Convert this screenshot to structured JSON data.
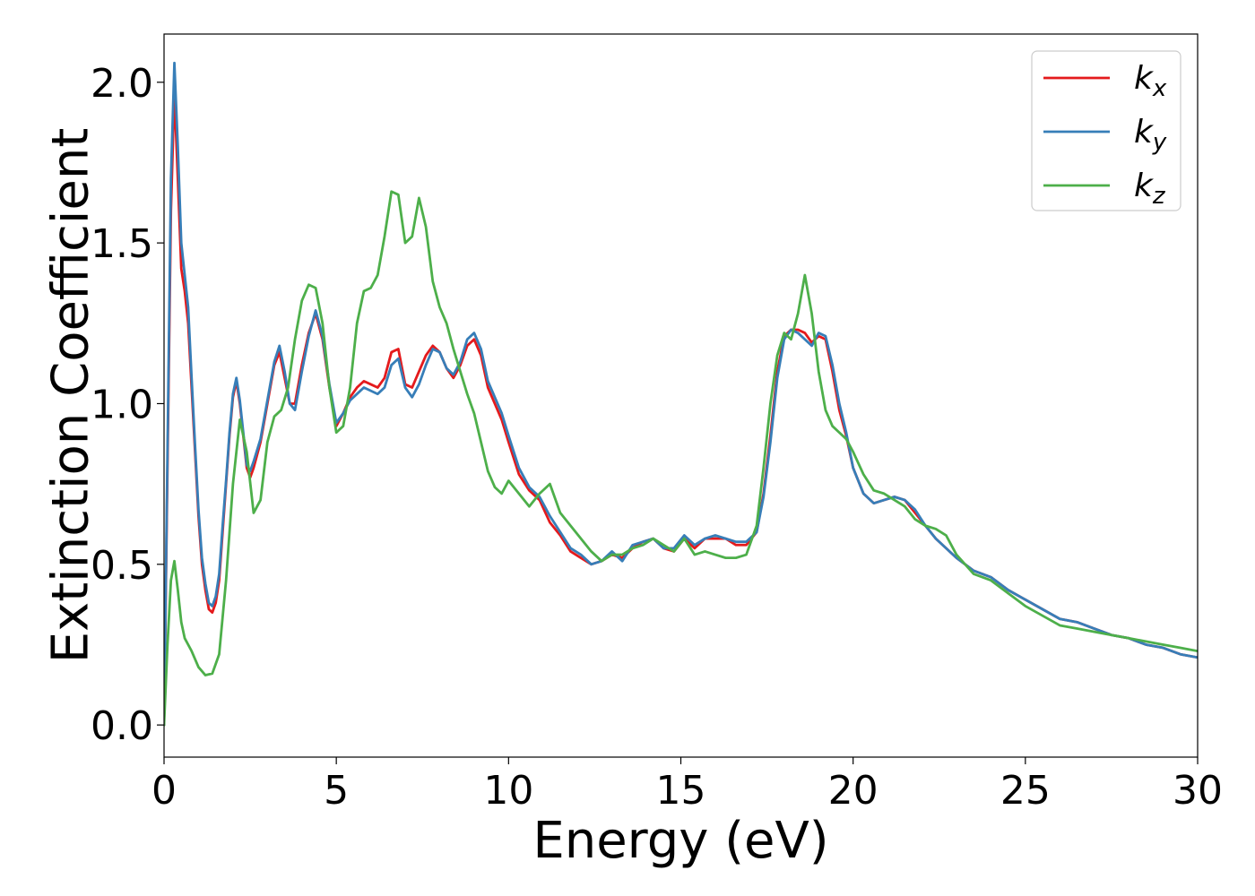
{
  "chart_data": {
    "type": "line",
    "title": "",
    "xlabel": "Energy (eV)",
    "ylabel": "Extinction Coefficient",
    "xlim": [
      0,
      30
    ],
    "ylim": [
      -0.1,
      2.15
    ],
    "xticks": [
      0,
      5,
      10,
      15,
      20,
      25,
      30
    ],
    "yticks": [
      0.0,
      0.5,
      1.0,
      1.5,
      2.0
    ],
    "xtick_labels": [
      "0",
      "5",
      "10",
      "15",
      "20",
      "25",
      "30"
    ],
    "ytick_labels": [
      "0.0",
      "0.5",
      "1.0",
      "1.5",
      "2.0"
    ],
    "grid": false,
    "legend_position": "top-right",
    "series": [
      {
        "name": "k",
        "subscript": "x",
        "color": "#e41a1c",
        "x": [
          0,
          0.1,
          0.2,
          0.3,
          0.4,
          0.5,
          0.6,
          0.7,
          0.8,
          0.9,
          1.0,
          1.1,
          1.2,
          1.3,
          1.4,
          1.5,
          1.6,
          1.7,
          1.8,
          1.9,
          2.0,
          2.1,
          2.2,
          2.3,
          2.4,
          2.5,
          2.6,
          2.8,
          3.0,
          3.2,
          3.35,
          3.5,
          3.65,
          3.8,
          4.0,
          4.2,
          4.4,
          4.6,
          4.8,
          5.0,
          5.2,
          5.4,
          5.6,
          5.8,
          6.0,
          6.2,
          6.4,
          6.6,
          6.8,
          7.0,
          7.2,
          7.4,
          7.6,
          7.8,
          8.0,
          8.2,
          8.4,
          8.6,
          8.8,
          9.0,
          9.2,
          9.4,
          9.6,
          9.8,
          10.0,
          10.3,
          10.6,
          10.9,
          11.2,
          11.5,
          11.8,
          12.1,
          12.4,
          12.7,
          13.0,
          13.3,
          13.6,
          13.9,
          14.2,
          14.5,
          14.8,
          15.1,
          15.4,
          15.7,
          16.0,
          16.3,
          16.6,
          16.9,
          17.2,
          17.4,
          17.6,
          17.8,
          18.0,
          18.2,
          18.4,
          18.6,
          18.8,
          19.0,
          19.2,
          19.4,
          19.6,
          19.8,
          20.0,
          20.3,
          20.6,
          20.9,
          21.2,
          21.5,
          21.8,
          22.1,
          22.4,
          22.7,
          23.0,
          23.5,
          24.0,
          24.5,
          25.0,
          25.5,
          26.0,
          26.5,
          27.0,
          27.5,
          28.0,
          28.5,
          29.0,
          29.5,
          30.0
        ],
        "y": [
          0.0,
          0.8,
          1.6,
          1.97,
          1.7,
          1.42,
          1.35,
          1.25,
          1.05,
          0.85,
          0.65,
          0.5,
          0.42,
          0.36,
          0.35,
          0.38,
          0.45,
          0.6,
          0.75,
          0.9,
          1.02,
          1.07,
          1.0,
          0.9,
          0.8,
          0.77,
          0.8,
          0.88,
          1.0,
          1.12,
          1.16,
          1.08,
          1.0,
          1.0,
          1.12,
          1.22,
          1.28,
          1.2,
          1.05,
          0.93,
          0.97,
          1.02,
          1.05,
          1.07,
          1.06,
          1.05,
          1.08,
          1.16,
          1.17,
          1.06,
          1.05,
          1.1,
          1.15,
          1.18,
          1.16,
          1.11,
          1.08,
          1.12,
          1.18,
          1.2,
          1.15,
          1.05,
          1.0,
          0.95,
          0.88,
          0.78,
          0.73,
          0.7,
          0.63,
          0.59,
          0.54,
          0.52,
          0.5,
          0.51,
          0.53,
          0.52,
          0.55,
          0.57,
          0.58,
          0.55,
          0.54,
          0.58,
          0.55,
          0.58,
          0.58,
          0.58,
          0.56,
          0.56,
          0.6,
          0.72,
          0.9,
          1.1,
          1.21,
          1.23,
          1.23,
          1.22,
          1.19,
          1.21,
          1.2,
          1.1,
          0.98,
          0.9,
          0.8,
          0.72,
          0.69,
          0.7,
          0.71,
          0.7,
          0.66,
          0.62,
          0.58,
          0.55,
          0.52,
          0.48,
          0.46,
          0.42,
          0.39,
          0.36,
          0.33,
          0.32,
          0.3,
          0.28,
          0.27,
          0.25,
          0.24,
          0.22,
          0.21
        ]
      },
      {
        "name": "k",
        "subscript": "y",
        "color": "#377eb8",
        "x": [
          0,
          0.1,
          0.2,
          0.3,
          0.4,
          0.5,
          0.6,
          0.7,
          0.8,
          0.9,
          1.0,
          1.1,
          1.2,
          1.3,
          1.4,
          1.5,
          1.6,
          1.7,
          1.8,
          1.9,
          2.0,
          2.1,
          2.2,
          2.3,
          2.4,
          2.5,
          2.6,
          2.8,
          3.0,
          3.2,
          3.35,
          3.5,
          3.65,
          3.8,
          4.0,
          4.2,
          4.4,
          4.6,
          4.8,
          5.0,
          5.2,
          5.4,
          5.6,
          5.8,
          6.0,
          6.2,
          6.4,
          6.6,
          6.8,
          7.0,
          7.2,
          7.4,
          7.6,
          7.8,
          8.0,
          8.2,
          8.4,
          8.6,
          8.8,
          9.0,
          9.2,
          9.4,
          9.6,
          9.8,
          10.0,
          10.3,
          10.6,
          10.9,
          11.2,
          11.5,
          11.8,
          12.1,
          12.4,
          12.7,
          13.0,
          13.3,
          13.6,
          13.9,
          14.2,
          14.5,
          14.8,
          15.1,
          15.4,
          15.7,
          16.0,
          16.3,
          16.6,
          16.9,
          17.2,
          17.4,
          17.6,
          17.8,
          18.0,
          18.2,
          18.4,
          18.6,
          18.8,
          19.0,
          19.2,
          19.4,
          19.6,
          19.8,
          20.0,
          20.3,
          20.6,
          20.9,
          21.2,
          21.5,
          21.8,
          22.1,
          22.4,
          22.7,
          23.0,
          23.5,
          24.0,
          24.5,
          25.0,
          25.5,
          26.0,
          26.5,
          27.0,
          27.5,
          28.0,
          28.5,
          29.0,
          29.5,
          30.0
        ],
        "y": [
          0.0,
          0.85,
          1.7,
          2.06,
          1.8,
          1.5,
          1.4,
          1.3,
          1.08,
          0.87,
          0.67,
          0.52,
          0.44,
          0.38,
          0.37,
          0.4,
          0.47,
          0.62,
          0.76,
          0.91,
          1.03,
          1.08,
          1.01,
          0.91,
          0.81,
          0.79,
          0.82,
          0.89,
          1.01,
          1.13,
          1.18,
          1.1,
          1.0,
          0.98,
          1.1,
          1.21,
          1.29,
          1.21,
          1.06,
          0.94,
          0.97,
          1.01,
          1.03,
          1.05,
          1.04,
          1.03,
          1.05,
          1.12,
          1.14,
          1.05,
          1.02,
          1.06,
          1.12,
          1.17,
          1.16,
          1.11,
          1.09,
          1.13,
          1.2,
          1.22,
          1.17,
          1.07,
          1.02,
          0.97,
          0.9,
          0.8,
          0.74,
          0.71,
          0.65,
          0.6,
          0.55,
          0.53,
          0.5,
          0.51,
          0.54,
          0.51,
          0.56,
          0.57,
          0.58,
          0.55,
          0.55,
          0.59,
          0.56,
          0.58,
          0.59,
          0.58,
          0.57,
          0.57,
          0.6,
          0.71,
          0.88,
          1.08,
          1.2,
          1.23,
          1.22,
          1.2,
          1.18,
          1.22,
          1.21,
          1.12,
          1.0,
          0.91,
          0.8,
          0.72,
          0.69,
          0.7,
          0.71,
          0.7,
          0.67,
          0.62,
          0.58,
          0.55,
          0.52,
          0.48,
          0.46,
          0.42,
          0.39,
          0.36,
          0.33,
          0.32,
          0.3,
          0.28,
          0.27,
          0.25,
          0.24,
          0.22,
          0.21
        ]
      },
      {
        "name": "k",
        "subscript": "z",
        "color": "#4daf4a",
        "x": [
          0,
          0.1,
          0.2,
          0.3,
          0.4,
          0.5,
          0.6,
          0.8,
          1.0,
          1.2,
          1.4,
          1.6,
          1.8,
          2.0,
          2.2,
          2.4,
          2.6,
          2.8,
          3.0,
          3.2,
          3.4,
          3.6,
          3.8,
          4.0,
          4.2,
          4.4,
          4.6,
          4.8,
          5.0,
          5.2,
          5.4,
          5.6,
          5.8,
          6.0,
          6.2,
          6.4,
          6.6,
          6.8,
          7.0,
          7.2,
          7.4,
          7.6,
          7.8,
          8.0,
          8.2,
          8.4,
          8.6,
          8.8,
          9.0,
          9.2,
          9.4,
          9.6,
          9.8,
          10.0,
          10.3,
          10.6,
          10.9,
          11.2,
          11.5,
          11.8,
          12.1,
          12.4,
          12.7,
          13.0,
          13.3,
          13.6,
          13.9,
          14.2,
          14.5,
          14.8,
          15.1,
          15.4,
          15.7,
          16.0,
          16.3,
          16.6,
          16.9,
          17.2,
          17.4,
          17.6,
          17.8,
          18.0,
          18.2,
          18.4,
          18.6,
          18.8,
          19.0,
          19.2,
          19.4,
          19.6,
          19.8,
          20.0,
          20.3,
          20.6,
          20.9,
          21.2,
          21.5,
          21.8,
          22.1,
          22.4,
          22.7,
          23.0,
          23.5,
          24.0,
          24.5,
          25.0,
          25.5,
          26.0,
          26.5,
          27.0,
          27.5,
          28.0,
          28.5,
          29.0,
          29.5,
          30.0
        ],
        "y": [
          0.0,
          0.25,
          0.45,
          0.51,
          0.42,
          0.32,
          0.27,
          0.23,
          0.18,
          0.155,
          0.16,
          0.22,
          0.45,
          0.75,
          0.95,
          0.85,
          0.66,
          0.7,
          0.88,
          0.96,
          0.98,
          1.05,
          1.2,
          1.32,
          1.37,
          1.36,
          1.25,
          1.05,
          0.91,
          0.93,
          1.05,
          1.25,
          1.35,
          1.36,
          1.4,
          1.52,
          1.66,
          1.65,
          1.5,
          1.52,
          1.64,
          1.55,
          1.38,
          1.3,
          1.25,
          1.17,
          1.1,
          1.03,
          0.97,
          0.88,
          0.79,
          0.74,
          0.72,
          0.76,
          0.72,
          0.68,
          0.72,
          0.75,
          0.66,
          0.62,
          0.58,
          0.54,
          0.51,
          0.53,
          0.53,
          0.55,
          0.56,
          0.58,
          0.56,
          0.54,
          0.58,
          0.53,
          0.54,
          0.53,
          0.52,
          0.52,
          0.53,
          0.62,
          0.8,
          1.0,
          1.15,
          1.22,
          1.2,
          1.28,
          1.4,
          1.28,
          1.1,
          0.98,
          0.93,
          0.91,
          0.89,
          0.85,
          0.78,
          0.73,
          0.72,
          0.7,
          0.68,
          0.64,
          0.62,
          0.61,
          0.59,
          0.53,
          0.47,
          0.45,
          0.41,
          0.37,
          0.34,
          0.31,
          0.3,
          0.29,
          0.28,
          0.27,
          0.26,
          0.25,
          0.24,
          0.23
        ]
      }
    ]
  }
}
